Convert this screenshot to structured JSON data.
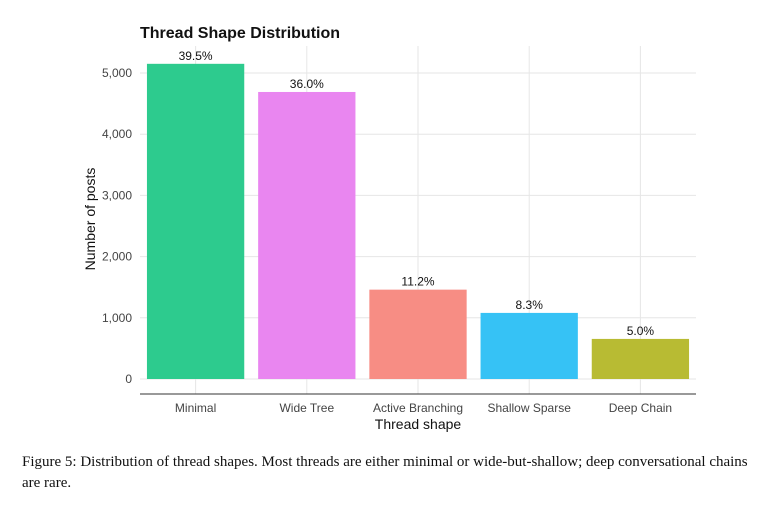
{
  "chart_data": {
    "type": "bar",
    "title": "Thread Shape Distribution",
    "xlabel": "Thread shape",
    "ylabel": "Number of posts",
    "categories": [
      "Minimal",
      "Wide Tree",
      "Active Branching",
      "Shallow Sparse",
      "Deep Chain"
    ],
    "values": [
      5150,
      4690,
      1460,
      1080,
      655
    ],
    "labels": [
      "39.5%",
      "36.0%",
      "11.2%",
      "8.3%",
      "5.0%"
    ],
    "colors": [
      "#2dcb8e",
      "#e986f0",
      "#f78d84",
      "#36c2f5",
      "#b8bb33"
    ],
    "ylim": [
      0,
      5500
    ],
    "yticks": [
      0,
      1000,
      2000,
      3000,
      4000,
      5000
    ],
    "ytick_labels": [
      "0",
      "1,000",
      "2,000",
      "3,000",
      "4,000",
      "5,000"
    ],
    "grid": true
  },
  "caption": "Figure 5: Distribution of thread shapes. Most threads are either minimal or wide-but-shallow; deep conversational chains are rare."
}
